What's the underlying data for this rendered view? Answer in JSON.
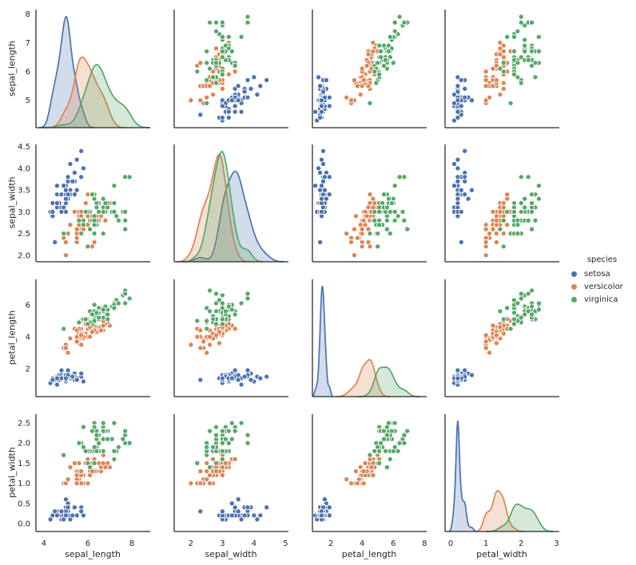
{
  "figure": {
    "background": "#ffffff",
    "text_color": "#262626",
    "spine_color": "#262626",
    "variables": [
      "sepal_length",
      "sepal_width",
      "petal_length",
      "petal_width"
    ],
    "legend": {
      "title": "species",
      "entries": [
        {
          "label": "setosa",
          "color": "#4c72b0"
        },
        {
          "label": "versicolor",
          "color": "#dd8452"
        },
        {
          "label": "virginica",
          "color": "#55a868"
        }
      ]
    },
    "axes": {
      "columns": [
        {
          "var": "sepal_length",
          "xlim": [
            3.64,
            8.84
          ],
          "ticks": [
            4,
            6,
            8
          ],
          "tick_labels": [
            "4",
            "6",
            "8"
          ]
        },
        {
          "var": "sepal_width",
          "xlim": [
            1.47,
            5.09
          ],
          "ticks": [
            2,
            3,
            4,
            5
          ],
          "tick_labels": [
            "2",
            "3",
            "4",
            "5"
          ]
        },
        {
          "var": "petal_length",
          "xlim": [
            0.81,
            8.14
          ],
          "ticks": [
            2,
            4,
            6,
            8
          ],
          "tick_labels": [
            "2",
            "4",
            "6",
            "8"
          ]
        },
        {
          "var": "petal_width",
          "xlim": [
            -0.16,
            3.08
          ],
          "ticks": [
            0,
            1,
            2,
            3
          ],
          "tick_labels": [
            "0",
            "1",
            "2",
            "3"
          ]
        }
      ],
      "rows": [
        {
          "var": "sepal_length",
          "ylim": [
            4.05,
            8.15
          ],
          "ticks": [
            5,
            6,
            7,
            8
          ],
          "tick_labels": [
            "5",
            "6",
            "7",
            "8"
          ]
        },
        {
          "var": "sepal_width",
          "ylim": [
            1.85,
            4.55
          ],
          "ticks": [
            2.0,
            2.5,
            3.0,
            3.5,
            4.0,
            4.5
          ],
          "tick_labels": [
            "2.0",
            "2.5",
            "3.0",
            "3.5",
            "4.0",
            "4.5"
          ]
        },
        {
          "var": "petal_length",
          "ylim": [
            0.25,
            7.6
          ],
          "ticks": [
            2,
            4,
            6
          ],
          "tick_labels": [
            "2",
            "4",
            "6"
          ]
        },
        {
          "var": "petal_width",
          "ylim": [
            -0.2,
            2.72
          ],
          "ticks": [
            0.0,
            0.5,
            1.0,
            1.5,
            2.0,
            2.5
          ],
          "tick_labels": [
            "0.0",
            "0.5",
            "1.0",
            "1.5",
            "2.0",
            "2.5"
          ]
        }
      ]
    }
  },
  "chart_data": {
    "type": "scatter",
    "subtype": "pairplot-scatter-matrix",
    "dataset": "iris",
    "title": "",
    "hue": "species",
    "diagonal": "kde",
    "grid": false,
    "legend_position": "center right",
    "columns": [
      "sepal_length",
      "sepal_width",
      "petal_length",
      "petal_width"
    ],
    "species_order": [
      "setosa",
      "versicolor",
      "virginica"
    ],
    "palette": {
      "setosa": "#4c72b0",
      "versicolor": "#dd8452",
      "virginica": "#55a868"
    },
    "points": {
      "setosa": [
        [
          5.1,
          3.5,
          1.4,
          0.2
        ],
        [
          4.9,
          3.0,
          1.4,
          0.2
        ],
        [
          4.7,
          3.2,
          1.3,
          0.2
        ],
        [
          4.6,
          3.1,
          1.5,
          0.2
        ],
        [
          5.0,
          3.6,
          1.4,
          0.2
        ],
        [
          5.4,
          3.9,
          1.7,
          0.4
        ],
        [
          4.6,
          3.4,
          1.4,
          0.3
        ],
        [
          5.0,
          3.4,
          1.5,
          0.2
        ],
        [
          4.4,
          2.9,
          1.4,
          0.2
        ],
        [
          4.9,
          3.1,
          1.5,
          0.1
        ],
        [
          5.4,
          3.7,
          1.5,
          0.2
        ],
        [
          4.8,
          3.4,
          1.6,
          0.2
        ],
        [
          4.8,
          3.0,
          1.4,
          0.1
        ],
        [
          4.3,
          3.0,
          1.1,
          0.1
        ],
        [
          5.8,
          4.0,
          1.2,
          0.2
        ],
        [
          5.7,
          4.4,
          1.5,
          0.4
        ],
        [
          5.4,
          3.9,
          1.3,
          0.4
        ],
        [
          5.1,
          3.5,
          1.4,
          0.3
        ],
        [
          5.7,
          3.8,
          1.7,
          0.3
        ],
        [
          5.1,
          3.8,
          1.5,
          0.3
        ],
        [
          5.4,
          3.4,
          1.7,
          0.2
        ],
        [
          5.1,
          3.7,
          1.5,
          0.4
        ],
        [
          4.6,
          3.6,
          1.0,
          0.2
        ],
        [
          5.1,
          3.3,
          1.7,
          0.5
        ],
        [
          4.8,
          3.4,
          1.9,
          0.2
        ],
        [
          5.0,
          3.0,
          1.6,
          0.2
        ],
        [
          5.0,
          3.4,
          1.6,
          0.4
        ],
        [
          5.2,
          3.5,
          1.5,
          0.2
        ],
        [
          5.2,
          3.4,
          1.4,
          0.2
        ],
        [
          4.7,
          3.2,
          1.6,
          0.2
        ],
        [
          4.8,
          3.1,
          1.6,
          0.2
        ],
        [
          5.4,
          3.4,
          1.5,
          0.4
        ],
        [
          5.2,
          4.1,
          1.5,
          0.1
        ],
        [
          5.5,
          4.2,
          1.4,
          0.2
        ],
        [
          4.9,
          3.1,
          1.5,
          0.2
        ],
        [
          5.0,
          3.2,
          1.2,
          0.2
        ],
        [
          5.5,
          3.5,
          1.3,
          0.2
        ],
        [
          4.9,
          3.6,
          1.4,
          0.1
        ],
        [
          4.4,
          3.0,
          1.3,
          0.2
        ],
        [
          5.1,
          3.4,
          1.5,
          0.2
        ],
        [
          5.0,
          3.5,
          1.3,
          0.3
        ],
        [
          4.5,
          2.3,
          1.3,
          0.3
        ],
        [
          4.4,
          3.2,
          1.3,
          0.2
        ],
        [
          5.0,
          3.5,
          1.6,
          0.6
        ],
        [
          5.1,
          3.8,
          1.9,
          0.4
        ],
        [
          4.8,
          3.0,
          1.4,
          0.3
        ],
        [
          5.1,
          3.8,
          1.6,
          0.2
        ],
        [
          4.6,
          3.2,
          1.4,
          0.2
        ],
        [
          5.3,
          3.7,
          1.5,
          0.2
        ],
        [
          5.0,
          3.3,
          1.4,
          0.2
        ]
      ],
      "versicolor": [
        [
          7.0,
          3.2,
          4.7,
          1.4
        ],
        [
          6.4,
          3.2,
          4.5,
          1.5
        ],
        [
          6.9,
          3.1,
          4.9,
          1.5
        ],
        [
          5.5,
          2.3,
          4.0,
          1.3
        ],
        [
          6.5,
          2.8,
          4.6,
          1.5
        ],
        [
          5.7,
          2.8,
          4.5,
          1.3
        ],
        [
          6.3,
          3.3,
          4.7,
          1.6
        ],
        [
          4.9,
          2.4,
          3.3,
          1.0
        ],
        [
          6.6,
          2.9,
          4.6,
          1.3
        ],
        [
          5.2,
          2.7,
          3.9,
          1.4
        ],
        [
          5.0,
          2.0,
          3.5,
          1.0
        ],
        [
          5.9,
          3.0,
          4.2,
          1.5
        ],
        [
          6.0,
          2.2,
          4.0,
          1.0
        ],
        [
          6.1,
          2.9,
          4.7,
          1.4
        ],
        [
          5.6,
          2.9,
          3.6,
          1.3
        ],
        [
          6.7,
          3.1,
          4.4,
          1.4
        ],
        [
          5.6,
          3.0,
          4.5,
          1.5
        ],
        [
          5.8,
          2.7,
          4.1,
          1.0
        ],
        [
          6.2,
          2.2,
          4.5,
          1.5
        ],
        [
          5.6,
          2.5,
          3.9,
          1.1
        ],
        [
          5.9,
          3.2,
          4.8,
          1.8
        ],
        [
          6.1,
          2.8,
          4.0,
          1.3
        ],
        [
          6.3,
          2.5,
          4.9,
          1.5
        ],
        [
          6.1,
          2.8,
          4.7,
          1.2
        ],
        [
          6.4,
          2.9,
          4.3,
          1.3
        ],
        [
          6.6,
          3.0,
          4.4,
          1.4
        ],
        [
          6.8,
          2.8,
          4.8,
          1.4
        ],
        [
          6.7,
          3.0,
          5.0,
          1.7
        ],
        [
          6.0,
          2.9,
          4.5,
          1.5
        ],
        [
          5.7,
          2.6,
          3.5,
          1.0
        ],
        [
          5.5,
          2.4,
          3.8,
          1.1
        ],
        [
          5.5,
          2.4,
          3.7,
          1.0
        ],
        [
          5.8,
          2.7,
          3.9,
          1.2
        ],
        [
          6.0,
          2.7,
          5.1,
          1.6
        ],
        [
          5.4,
          3.0,
          4.5,
          1.5
        ],
        [
          6.0,
          3.4,
          4.5,
          1.6
        ],
        [
          6.7,
          3.1,
          4.7,
          1.5
        ],
        [
          6.3,
          2.3,
          4.4,
          1.3
        ],
        [
          5.6,
          3.0,
          4.1,
          1.3
        ],
        [
          5.5,
          2.5,
          4.0,
          1.3
        ],
        [
          5.5,
          2.6,
          4.4,
          1.2
        ],
        [
          6.1,
          3.0,
          4.6,
          1.4
        ],
        [
          5.8,
          2.6,
          4.0,
          1.2
        ],
        [
          5.0,
          2.3,
          3.3,
          1.0
        ],
        [
          5.6,
          2.7,
          4.2,
          1.3
        ],
        [
          5.7,
          3.0,
          4.2,
          1.2
        ],
        [
          5.7,
          2.9,
          4.2,
          1.3
        ],
        [
          6.2,
          2.9,
          4.3,
          1.3
        ],
        [
          5.1,
          2.5,
          3.0,
          1.1
        ],
        [
          5.7,
          2.8,
          4.1,
          1.3
        ]
      ],
      "virginica": [
        [
          6.3,
          3.3,
          6.0,
          2.5
        ],
        [
          5.8,
          2.7,
          5.1,
          1.9
        ],
        [
          7.1,
          3.0,
          5.9,
          2.1
        ],
        [
          6.3,
          2.9,
          5.6,
          1.8
        ],
        [
          6.5,
          3.0,
          5.8,
          2.2
        ],
        [
          7.6,
          3.0,
          6.6,
          2.1
        ],
        [
          4.9,
          2.5,
          4.5,
          1.7
        ],
        [
          7.3,
          2.9,
          6.3,
          1.8
        ],
        [
          6.7,
          2.5,
          5.8,
          1.8
        ],
        [
          7.2,
          3.6,
          6.1,
          2.5
        ],
        [
          6.5,
          3.2,
          5.1,
          2.0
        ],
        [
          6.4,
          2.7,
          5.3,
          1.9
        ],
        [
          6.8,
          3.0,
          5.5,
          2.1
        ],
        [
          5.7,
          2.5,
          5.0,
          2.0
        ],
        [
          5.8,
          2.8,
          5.1,
          2.4
        ],
        [
          6.4,
          3.2,
          5.3,
          2.3
        ],
        [
          6.5,
          3.0,
          5.5,
          1.8
        ],
        [
          7.7,
          3.8,
          6.7,
          2.2
        ],
        [
          7.7,
          2.6,
          6.9,
          2.3
        ],
        [
          6.0,
          2.2,
          5.0,
          1.5
        ],
        [
          6.9,
          3.2,
          5.7,
          2.3
        ],
        [
          5.6,
          2.8,
          4.9,
          2.0
        ],
        [
          7.7,
          2.8,
          6.7,
          2.0
        ],
        [
          6.3,
          2.7,
          4.9,
          1.8
        ],
        [
          6.7,
          3.3,
          5.7,
          2.1
        ],
        [
          7.2,
          3.2,
          6.0,
          1.8
        ],
        [
          6.2,
          2.8,
          4.8,
          1.8
        ],
        [
          6.1,
          3.0,
          4.9,
          1.8
        ],
        [
          6.4,
          2.8,
          5.6,
          2.1
        ],
        [
          7.2,
          3.0,
          5.8,
          1.6
        ],
        [
          7.4,
          2.8,
          6.1,
          1.9
        ],
        [
          7.9,
          3.8,
          6.4,
          2.0
        ],
        [
          6.4,
          2.8,
          5.6,
          2.2
        ],
        [
          6.3,
          2.8,
          5.1,
          1.5
        ],
        [
          6.1,
          2.6,
          5.6,
          1.4
        ],
        [
          7.7,
          3.0,
          6.1,
          2.3
        ],
        [
          6.3,
          3.4,
          5.6,
          2.4
        ],
        [
          6.4,
          3.1,
          5.5,
          1.8
        ],
        [
          6.0,
          3.0,
          4.8,
          1.8
        ],
        [
          6.9,
          3.1,
          5.4,
          2.1
        ],
        [
          6.7,
          3.1,
          5.6,
          2.4
        ],
        [
          6.9,
          3.1,
          5.1,
          2.3
        ],
        [
          5.8,
          2.7,
          5.1,
          1.9
        ],
        [
          6.8,
          3.2,
          5.9,
          2.3
        ],
        [
          6.7,
          3.3,
          5.7,
          2.5
        ],
        [
          6.7,
          3.0,
          5.2,
          2.3
        ],
        [
          6.3,
          2.5,
          5.0,
          1.9
        ],
        [
          6.5,
          3.0,
          5.2,
          2.0
        ],
        [
          6.2,
          3.4,
          5.4,
          2.3
        ],
        [
          5.9,
          3.0,
          5.1,
          1.8
        ]
      ]
    }
  }
}
